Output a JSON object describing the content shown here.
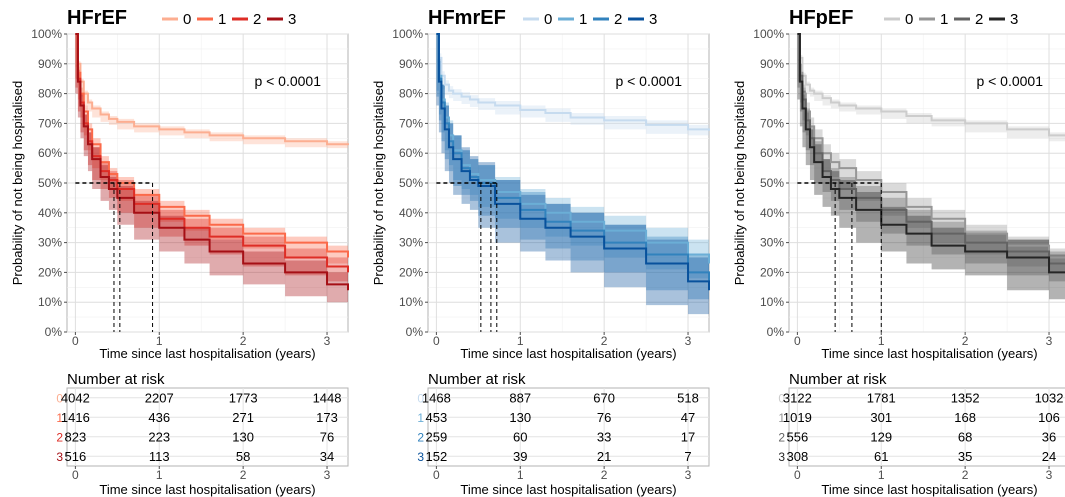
{
  "chart_data": [
    {
      "type": "line",
      "title": "HFrEF",
      "xlabel": "Time since last hospitalisation (years)",
      "ylabel": "Probability of not being hospitalised",
      "xlim": [
        -0.1,
        3.25
      ],
      "ylim": [
        0,
        1
      ],
      "x_ticks": [
        0,
        1,
        2,
        3
      ],
      "y_ticks": [
        "0%",
        "10%",
        "20%",
        "30%",
        "40%",
        "50%",
        "60%",
        "70%",
        "80%",
        "90%",
        "100%"
      ],
      "annotation": "p < 0.0001",
      "legend_position": "top",
      "grid": true,
      "median_x": [
        0.46,
        0.53,
        0.92
      ],
      "series": [
        {
          "name": "0",
          "color": "#fcae91",
          "x": [
            0,
            0.03,
            0.06,
            0.1,
            0.15,
            0.2,
            0.3,
            0.4,
            0.5,
            0.7,
            1.0,
            1.3,
            1.6,
            2.0,
            2.5,
            3.0,
            3.25
          ],
          "y": [
            1.0,
            0.9,
            0.84,
            0.8,
            0.77,
            0.75,
            0.73,
            0.715,
            0.705,
            0.69,
            0.68,
            0.67,
            0.66,
            0.65,
            0.64,
            0.63,
            0.627
          ],
          "ci": 0.01
        },
        {
          "name": "1",
          "color": "#fb6a4a",
          "x": [
            0,
            0.03,
            0.06,
            0.1,
            0.15,
            0.2,
            0.3,
            0.4,
            0.5,
            0.7,
            1.0,
            1.3,
            1.6,
            2.0,
            2.5,
            3.0,
            3.25
          ],
          "y": [
            1.0,
            0.87,
            0.8,
            0.74,
            0.68,
            0.63,
            0.57,
            0.53,
            0.5,
            0.46,
            0.42,
            0.39,
            0.36,
            0.33,
            0.3,
            0.27,
            0.25
          ],
          "ci": 0.02
        },
        {
          "name": "2",
          "color": "#de2d26",
          "x": [
            0,
            0.03,
            0.06,
            0.1,
            0.15,
            0.2,
            0.3,
            0.4,
            0.5,
            0.7,
            1.0,
            1.3,
            1.6,
            2.0,
            2.5,
            3.0,
            3.25
          ],
          "y": [
            1.0,
            0.85,
            0.77,
            0.7,
            0.64,
            0.59,
            0.54,
            0.51,
            0.48,
            0.43,
            0.38,
            0.35,
            0.32,
            0.29,
            0.25,
            0.22,
            0.2
          ],
          "ci": 0.03
        },
        {
          "name": "3",
          "color": "#a50f15",
          "x": [
            0,
            0.03,
            0.06,
            0.1,
            0.15,
            0.2,
            0.3,
            0.4,
            0.5,
            0.7,
            1.0,
            1.3,
            1.6,
            2.0,
            2.5,
            3.0,
            3.25
          ],
          "y": [
            1.0,
            0.84,
            0.76,
            0.69,
            0.63,
            0.58,
            0.52,
            0.48,
            0.45,
            0.4,
            0.35,
            0.31,
            0.27,
            0.23,
            0.2,
            0.16,
            0.14
          ],
          "ci": 0.04
        }
      ],
      "risk_table": {
        "title": "Number at risk",
        "x_ticks": [
          0,
          1,
          2,
          3
        ],
        "xlabel": "Time since last hospitalisation (years)",
        "strata": [
          "0",
          "1",
          "2",
          "3"
        ],
        "rows": [
          [
            4042,
            2207,
            1773,
            1448
          ],
          [
            1416,
            436,
            271,
            173
          ],
          [
            823,
            223,
            130,
            76
          ],
          [
            516,
            113,
            58,
            34
          ]
        ]
      }
    },
    {
      "type": "line",
      "title": "HFmrEF",
      "xlabel": "Time since last hospitalisation (years)",
      "ylabel": "Probability of not being hospitalised",
      "xlim": [
        -0.1,
        3.25
      ],
      "ylim": [
        0,
        1
      ],
      "x_ticks": [
        0,
        1,
        2,
        3
      ],
      "y_ticks": [
        "0%",
        "10%",
        "20%",
        "30%",
        "40%",
        "50%",
        "60%",
        "70%",
        "80%",
        "90%",
        "100%"
      ],
      "annotation": "p < 0.0001",
      "legend_position": "top",
      "grid": true,
      "median_x": [
        0.53,
        0.65,
        0.72
      ],
      "series": [
        {
          "name": "0",
          "color": "#c6dbef",
          "x": [
            0,
            0.03,
            0.06,
            0.1,
            0.15,
            0.2,
            0.3,
            0.4,
            0.5,
            0.7,
            1.0,
            1.3,
            1.6,
            2.0,
            2.5,
            3.0,
            3.25
          ],
          "y": [
            1.0,
            0.92,
            0.86,
            0.83,
            0.81,
            0.8,
            0.79,
            0.78,
            0.77,
            0.76,
            0.745,
            0.735,
            0.72,
            0.71,
            0.695,
            0.68,
            0.675
          ],
          "ci": 0.015
        },
        {
          "name": "1",
          "color": "#6baed6",
          "x": [
            0,
            0.03,
            0.06,
            0.1,
            0.15,
            0.2,
            0.3,
            0.4,
            0.5,
            0.7,
            1.0,
            1.3,
            1.6,
            2.0,
            2.5,
            3.0,
            3.25
          ],
          "y": [
            1.0,
            0.86,
            0.78,
            0.72,
            0.66,
            0.61,
            0.56,
            0.53,
            0.51,
            0.47,
            0.43,
            0.4,
            0.37,
            0.34,
            0.3,
            0.26,
            0.23
          ],
          "ci": 0.05
        },
        {
          "name": "2",
          "color": "#3182bd",
          "x": [
            0,
            0.03,
            0.06,
            0.1,
            0.15,
            0.2,
            0.3,
            0.4,
            0.5,
            0.7,
            1.0,
            1.3,
            1.6,
            2.0,
            2.5,
            3.0,
            3.25
          ],
          "y": [
            1.0,
            0.85,
            0.77,
            0.7,
            0.64,
            0.6,
            0.55,
            0.52,
            0.5,
            0.45,
            0.41,
            0.37,
            0.34,
            0.3,
            0.26,
            0.2,
            0.17
          ],
          "ci": 0.06
        },
        {
          "name": "3",
          "color": "#08519c",
          "x": [
            0,
            0.03,
            0.06,
            0.1,
            0.15,
            0.2,
            0.3,
            0.4,
            0.5,
            0.7,
            1.0,
            1.3,
            1.6,
            2.0,
            2.5,
            3.0,
            3.25
          ],
          "y": [
            1.0,
            0.84,
            0.75,
            0.68,
            0.62,
            0.58,
            0.54,
            0.51,
            0.49,
            0.43,
            0.38,
            0.35,
            0.32,
            0.28,
            0.23,
            0.17,
            0.14
          ],
          "ci": 0.08
        }
      ],
      "risk_table": {
        "title": "Number at risk",
        "x_ticks": [
          0,
          1,
          2,
          3
        ],
        "xlabel": "Time since last hospitalisation (years)",
        "strata": [
          "0",
          "1",
          "2",
          "3"
        ],
        "rows": [
          [
            1468,
            887,
            670,
            518
          ],
          [
            453,
            130,
            76,
            47
          ],
          [
            259,
            60,
            33,
            17
          ],
          [
            152,
            39,
            21,
            7
          ]
        ]
      }
    },
    {
      "type": "line",
      "title": "HFpEF",
      "xlabel": "Time since last hospitalisation (years)",
      "ylabel": "Probability of not being hospitalised",
      "xlim": [
        -0.1,
        3.25
      ],
      "ylim": [
        0,
        1
      ],
      "x_ticks": [
        0,
        1,
        2,
        3
      ],
      "y_ticks": [
        "0%",
        "10%",
        "20%",
        "30%",
        "40%",
        "50%",
        "60%",
        "70%",
        "80%",
        "90%",
        "100%"
      ],
      "annotation": "p < 0.0001",
      "legend_position": "top",
      "grid": true,
      "median_x": [
        0.45,
        0.65,
        1.0
      ],
      "series": [
        {
          "name": "0",
          "color": "#cccccc",
          "x": [
            0,
            0.03,
            0.06,
            0.1,
            0.15,
            0.2,
            0.3,
            0.4,
            0.5,
            0.7,
            1.0,
            1.3,
            1.6,
            2.0,
            2.5,
            3.0,
            3.25
          ],
          "y": [
            1.0,
            0.92,
            0.86,
            0.83,
            0.81,
            0.8,
            0.785,
            0.77,
            0.76,
            0.75,
            0.74,
            0.725,
            0.71,
            0.7,
            0.68,
            0.66,
            0.65
          ],
          "ci": 0.01
        },
        {
          "name": "1",
          "color": "#969696",
          "x": [
            0,
            0.03,
            0.06,
            0.1,
            0.15,
            0.2,
            0.3,
            0.4,
            0.5,
            0.7,
            1.0,
            1.3,
            1.6,
            2.0,
            2.5,
            3.0,
            3.25
          ],
          "y": [
            1.0,
            0.87,
            0.8,
            0.74,
            0.69,
            0.65,
            0.6,
            0.57,
            0.55,
            0.51,
            0.47,
            0.42,
            0.38,
            0.33,
            0.29,
            0.25,
            0.23
          ],
          "ci": 0.03
        },
        {
          "name": "2",
          "color": "#636363",
          "x": [
            0,
            0.03,
            0.06,
            0.1,
            0.15,
            0.2,
            0.3,
            0.4,
            0.5,
            0.7,
            1.0,
            1.3,
            1.6,
            2.0,
            2.5,
            3.0,
            3.25
          ],
          "y": [
            1.0,
            0.86,
            0.78,
            0.71,
            0.65,
            0.6,
            0.54,
            0.51,
            0.48,
            0.45,
            0.41,
            0.37,
            0.33,
            0.3,
            0.27,
            0.23,
            0.21
          ],
          "ci": 0.04
        },
        {
          "name": "3",
          "color": "#252525",
          "x": [
            0,
            0.03,
            0.06,
            0.1,
            0.15,
            0.2,
            0.3,
            0.4,
            0.5,
            0.7,
            1.0,
            1.3,
            1.6,
            2.0,
            2.5,
            3.0,
            3.25
          ],
          "y": [
            1.0,
            0.84,
            0.75,
            0.68,
            0.62,
            0.57,
            0.52,
            0.48,
            0.45,
            0.41,
            0.36,
            0.33,
            0.29,
            0.27,
            0.25,
            0.2,
            0.17
          ],
          "ci": 0.06
        }
      ],
      "risk_table": {
        "title": "Number at risk",
        "x_ticks": [
          0,
          1,
          2,
          3
        ],
        "xlabel": "Time since last hospitalisation (years)",
        "strata": [
          "0",
          "1",
          "2",
          "3"
        ],
        "rows": [
          [
            3122,
            1781,
            1352,
            1032
          ],
          [
            1019,
            301,
            168,
            106
          ],
          [
            556,
            129,
            68,
            36
          ],
          [
            308,
            61,
            35,
            24
          ]
        ]
      }
    }
  ]
}
